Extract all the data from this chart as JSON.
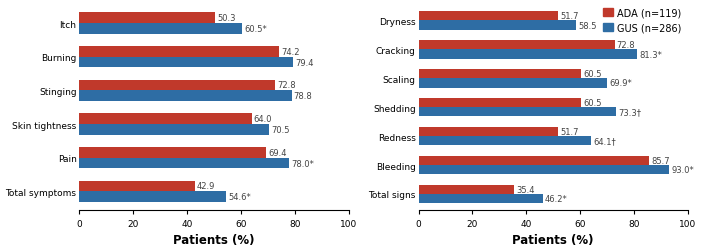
{
  "left_categories": [
    "Itch",
    "Burning",
    "Stinging",
    "Skin tightness",
    "Pain",
    "Total symptoms"
  ],
  "left_ada": [
    50.3,
    74.2,
    72.8,
    64.0,
    69.4,
    42.9
  ],
  "left_gus": [
    60.5,
    79.4,
    78.8,
    70.5,
    78.0,
    54.6
  ],
  "left_labels_ada": [
    "50.3",
    "74.2",
    "72.8",
    "64.0",
    "69.4",
    "42.9"
  ],
  "left_labels_gus": [
    "60.5*",
    "79.4",
    "78.8",
    "70.5",
    "78.0*",
    "54.6*"
  ],
  "right_categories": [
    "Dryness",
    "Cracking",
    "Scaling",
    "Shedding",
    "Redness",
    "Bleeding",
    "Total signs"
  ],
  "right_ada": [
    51.7,
    72.8,
    60.5,
    60.5,
    51.7,
    85.7,
    35.4
  ],
  "right_gus": [
    58.5,
    81.3,
    69.9,
    73.3,
    64.1,
    93.0,
    46.2
  ],
  "right_labels_ada": [
    "51.7",
    "72.8",
    "60.5",
    "60.5",
    "51.7",
    "85.7",
    "35.4"
  ],
  "right_labels_gus": [
    "58.5",
    "81.3*",
    "69.9*",
    "73.3†",
    "64.1†",
    "93.0*",
    "46.2*"
  ],
  "color_ada": "#c0392b",
  "color_gus": "#2e6da4",
  "xlabel": "Patients (%)",
  "xlim": [
    0,
    100
  ],
  "xticks": [
    0,
    20,
    40,
    60,
    80,
    100
  ],
  "legend_ada": "ADA (n=119)",
  "legend_gus": "GUS (n=286)",
  "bar_height": 0.32,
  "label_fontsize": 6.0,
  "tick_fontsize": 6.5,
  "xlabel_fontsize": 8.5
}
